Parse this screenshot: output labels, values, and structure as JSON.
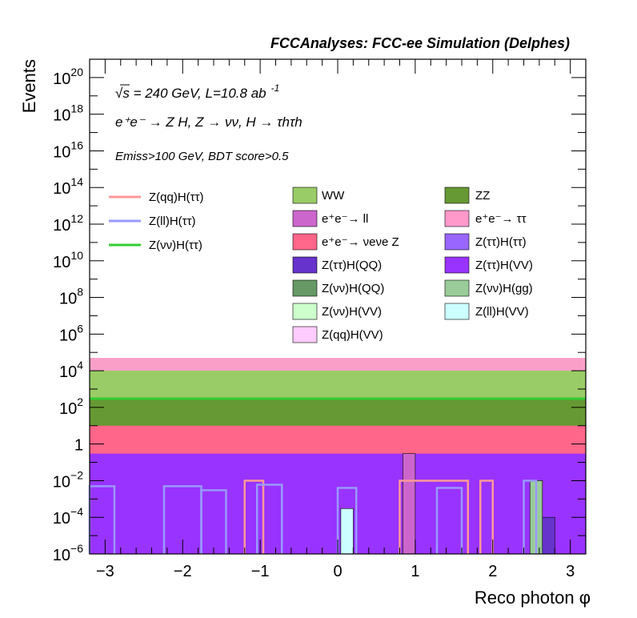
{
  "chart_data": {
    "type": "bar",
    "title": "FCCAnalyses: FCC-ee Simulation (Delphes)",
    "xlabel": "Reco photon φ",
    "ylabel": "Events",
    "log_y": true,
    "xlim": [
      -3.2,
      3.2
    ],
    "ylim": [
      1e-06,
      1e+21
    ],
    "annotations": {
      "line1_sqrt": "√s",
      "line1_rest": " = 240 GeV, L=10.8 ab",
      "line1_sup": "-1",
      "line2": "e⁺e⁻ → Z H, Z → νν, H → τhτh",
      "line3": "Emiss>100 GeV, BDT score>0.5"
    },
    "x_ticks": [
      {
        "v": -3,
        "label": "−3"
      },
      {
        "v": -2,
        "label": "−2"
      },
      {
        "v": -1,
        "label": "−1"
      },
      {
        "v": 0,
        "label": "0"
      },
      {
        "v": 1,
        "label": "1"
      },
      {
        "v": 2,
        "label": "2"
      },
      {
        "v": 3,
        "label": "3"
      }
    ],
    "y_ticks": [
      {
        "e": -6,
        "base": "10",
        "sup": "−6"
      },
      {
        "e": -4,
        "base": "10",
        "sup": "−4"
      },
      {
        "e": -2,
        "base": "10",
        "sup": "−2"
      },
      {
        "e": 0,
        "base": "1",
        "sup": ""
      },
      {
        "e": 2,
        "base": "10",
        "sup": "2"
      },
      {
        "e": 4,
        "base": "10",
        "sup": "4"
      },
      {
        "e": 6,
        "base": "10",
        "sup": "6"
      },
      {
        "e": 8,
        "base": "10",
        "sup": "8"
      },
      {
        "e": 10,
        "base": "10",
        "sup": "10"
      },
      {
        "e": 12,
        "base": "10",
        "sup": "12"
      },
      {
        "e": 14,
        "base": "10",
        "sup": "14"
      },
      {
        "e": 16,
        "base": "10",
        "sup": "16"
      },
      {
        "e": 18,
        "base": "10",
        "sup": "18"
      },
      {
        "e": 20,
        "base": "10",
        "sup": "20"
      }
    ],
    "stack_bands": [
      {
        "name": "e+e- → ττ",
        "color": "#f99fc8",
        "top": 50000
      },
      {
        "name": "WW",
        "color": "#99cc66",
        "top": 10000
      },
      {
        "name": "ZZ",
        "color": "#669933",
        "top": 300
      },
      {
        "name": "e+e- → νeνe Z",
        "color": "#ff6689",
        "top": 10
      },
      {
        "name": "Z(ττ)H(VV)",
        "color": "#9933ff",
        "top": 0.3
      }
    ],
    "lines": [
      {
        "name": "Z(νν)H(ττ)",
        "color": "#33cc33",
        "value": 300
      },
      {
        "name": "Z(qq)H(ττ)",
        "color": "#ff9999",
        "segments": [
          {
            "x0": -1.2,
            "x1": -0.96,
            "y": 0.01
          },
          {
            "x0": 0.8,
            "x1": 1.68,
            "y": 0.01
          },
          {
            "x0": 1.84,
            "x1": 2.0,
            "y": 0.01
          }
        ]
      },
      {
        "name": "Z(ll)H(ττ)",
        "color": "#9999ff",
        "segments": [
          {
            "x0": -3.2,
            "x1": -2.88,
            "y": 0.005
          },
          {
            "x0": -2.24,
            "x1": -1.76,
            "y": 0.005
          },
          {
            "x0": -1.76,
            "x1": -1.44,
            "y": 0.003
          },
          {
            "x0": -1.04,
            "x1": -0.72,
            "y": 0.006
          },
          {
            "x0": 0.0,
            "x1": 0.24,
            "y": 0.004
          },
          {
            "x0": 1.28,
            "x1": 1.6,
            "y": 0.004
          },
          {
            "x0": 2.4,
            "x1": 2.56,
            "y": 0.01
          }
        ]
      }
    ],
    "features": [
      {
        "name": "Z(ll)H(VV)",
        "color": "#ccffff",
        "x0": 0.04,
        "x1": 0.2,
        "y": 0.0003
      },
      {
        "name": "e+e- → ll",
        "color": "#cc66cc",
        "x0": 0.84,
        "x1": 1.0,
        "y": 0.3
      },
      {
        "name": "Z(ττ)H(QQ)",
        "color": "#6633cc",
        "x0": 2.64,
        "x1": 2.8,
        "y": 0.0001
      },
      {
        "name": "Z(νν)H(gg)",
        "color": "#99cc99",
        "x0": 2.48,
        "x1": 2.64,
        "y": 0.01
      }
    ],
    "legend_left": [
      {
        "label": "Z(qq)H(ττ)",
        "color": "#ff9999",
        "kind": "line"
      },
      {
        "label": "Z(ll)H(ττ)",
        "color": "#9999ff",
        "kind": "line"
      },
      {
        "label": "Z(νν)H(ττ)",
        "color": "#33cc33",
        "kind": "line"
      }
    ],
    "legend_col1": [
      {
        "label": "WW",
        "color": "#99cc66"
      },
      {
        "label": "e⁺e⁻→ ll",
        "color": "#cc66cc"
      },
      {
        "label": "e⁺e⁻→ νeνe Z",
        "color": "#ff6689"
      },
      {
        "label": "Z(ττ)H(QQ)",
        "color": "#6633cc"
      },
      {
        "label": "Z(νν)H(QQ)",
        "color": "#669966"
      },
      {
        "label": "Z(νν)H(VV)",
        "color": "#ccffcc"
      },
      {
        "label": "Z(qq)H(VV)",
        "color": "#ffccff"
      }
    ],
    "legend_col2": [
      {
        "label": "ZZ",
        "color": "#669933"
      },
      {
        "label": "e⁺e⁻→ ττ",
        "color": "#ff99cc"
      },
      {
        "label": "Z(ττ)H(ττ)",
        "color": "#9966ff"
      },
      {
        "label": "Z(ττ)H(VV)",
        "color": "#9933ff"
      },
      {
        "label": "Z(νν)H(gg)",
        "color": "#99cc99"
      },
      {
        "label": "Z(ll)H(VV)",
        "color": "#ccffff"
      }
    ],
    "legend_placement": "upper-middle",
    "grid": false
  }
}
